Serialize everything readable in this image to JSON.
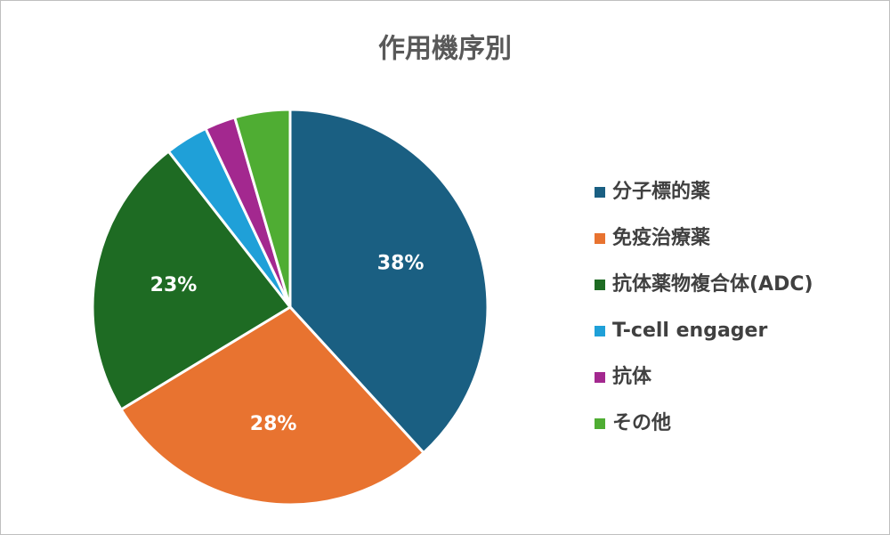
{
  "chart_data": {
    "type": "pie",
    "title": "作用機序別",
    "categories": [
      "分子標的薬",
      "免疫治療薬",
      "抗体薬物複合体(ADC)",
      "T-cell engager",
      "抗体",
      "その他"
    ],
    "values": [
      38,
      28,
      23,
      3.5,
      2.5,
      4.5
    ],
    "value_labels": [
      "38%",
      "28%",
      "23%",
      null,
      null,
      null
    ],
    "colors": [
      "#1a5f82",
      "#e87330",
      "#1e6b23",
      "#1fa0d8",
      "#a3288f",
      "#4fad33"
    ],
    "legend": "right"
  }
}
